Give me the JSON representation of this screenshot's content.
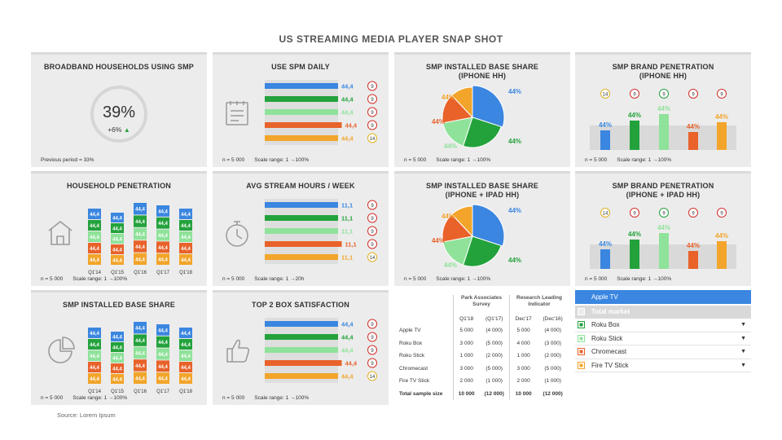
{
  "title": "US STREAMING MEDIA PLAYER SNAP SHOT",
  "source": "Source: Lorem Ipsum",
  "colors": {
    "apple": "#3a86e0",
    "roku": "#23a23c",
    "roku_stick": "#8fe29a",
    "chromecast": "#e8622a",
    "firetv": "#f2a52a",
    "total": "#d9d9d9"
  },
  "panels": {
    "broadband": {
      "title": "BROADBAND HOUSEHOLDS USING SMP",
      "value": "39%",
      "delta": "+6%",
      "previous": "Previous period = 33%"
    },
    "spm_daily": {
      "title": "USE SPM DAILY",
      "n": "n = 5 000",
      "scale": "Scale range: 1 →100%"
    },
    "installed_iphone": {
      "title": "SMP INSTALLED BASE SHARE\n(IPHONE HH)",
      "n": "n = 5 000",
      "scale": "Scale range: 1 →100%"
    },
    "brand_iphone": {
      "title": "SMP BRAND PENETRATION\n(IPHONE HH)",
      "n": "n = 5 000",
      "scale": "Scale range: 1 →100%"
    },
    "household": {
      "title": "HOUSEHOLD PENETRATION",
      "n": "n = 5 000",
      "scale": "Scale range: 1 →100%"
    },
    "stream_hours": {
      "title": "AVG STREAM HOURS / WEEK",
      "n": "n = 5 000",
      "scale": "Scale range: 1 →20h"
    },
    "installed_ipad": {
      "title": "SMP INSTALLED BASE SHARE\n(IPHONE + IPAD HH)",
      "n": "n = 5 000",
      "scale": "Scale range: 1 →100%"
    },
    "brand_ipad": {
      "title": "SMP BRAND PENETRATION\n(IPHONE + IPAD HH)",
      "n": "n = 5 000",
      "scale": "Scale range: 1 →100%"
    },
    "installed_share": {
      "title": "SMP INSTALLED BASE SHARE",
      "n": "n = 5 000",
      "scale": "Scale range: 1 →100%"
    },
    "top2box": {
      "title": "TOP 2 BOX SATISFACTION",
      "n": "n = 5 000",
      "scale": "Scale range: 1 →100%"
    }
  },
  "table": {
    "group1": "Park Associates Survey",
    "group2": "Research Leading Indicator",
    "sub": [
      "Q1'18",
      "(Q1'17)",
      "Dec'17",
      "(Dec'16)"
    ],
    "rows": [
      {
        "label": "Apple TV",
        "v": [
          "5 000",
          "(4 000)",
          "5 000",
          "(4 000)"
        ]
      },
      {
        "label": "Roku Box",
        "v": [
          "3 000",
          "(5 000)",
          "4 000",
          "(3 000)"
        ]
      },
      {
        "label": "Roku Stick",
        "v": [
          "1 000",
          "(2 000)",
          "1 000",
          "(2 000)"
        ]
      },
      {
        "label": "Chromecast",
        "v": [
          "3 000",
          "(5 000)",
          "3 000",
          "(5 000)"
        ]
      },
      {
        "label": "Fire TV Stick",
        "v": [
          "2 000",
          "(1 000)",
          "2 000",
          "(1 000)"
        ]
      },
      {
        "label": "Total sample size",
        "v": [
          "10 000",
          "(12 000)",
          "10 000",
          "(12 000)"
        ]
      }
    ]
  },
  "legend": [
    {
      "label": "Apple TV",
      "color": "#3a86e0",
      "style": "header"
    },
    {
      "label": "Total market",
      "color": "#d9d9d9",
      "style": "grey"
    },
    {
      "label": "Roku Box",
      "color": "#23a23c",
      "style": "item"
    },
    {
      "label": "Roku  Stick",
      "color": "#8fe29a",
      "style": "item"
    },
    {
      "label": "Chromecast",
      "color": "#e8622a",
      "style": "item"
    },
    {
      "label": "Fire TV Stick",
      "color": "#f2a52a",
      "style": "item"
    }
  ],
  "chart_data": [
    {
      "type": "bar",
      "chart": "USE SPM DAILY",
      "categories": [
        "Apple TV",
        "Roku Box",
        "Roku Stick",
        "Chromecast",
        "Fire TV Stick"
      ],
      "values": [
        44.4,
        44.4,
        44.4,
        44.4,
        44.4
      ],
      "labels": [
        "44,4",
        "44,4",
        "44,4",
        "44,4",
        "44,4"
      ],
      "ranks": [
        "9",
        "9",
        "9",
        "9",
        "14"
      ]
    },
    {
      "type": "bar",
      "chart": "AVG STREAM HOURS / WEEK",
      "categories": [
        "Apple TV",
        "Roku Box",
        "Roku Stick",
        "Chromecast",
        "Fire TV Stick"
      ],
      "values": [
        11.1,
        11.1,
        11.1,
        11.1,
        11.1
      ],
      "labels": [
        "11,1",
        "11,1",
        "11,1",
        "11,1",
        "11,1"
      ],
      "ranks": [
        "9",
        "9",
        "9",
        "9",
        "14"
      ]
    },
    {
      "type": "bar",
      "chart": "TOP 2 BOX SATISFACTION",
      "categories": [
        "Apple TV",
        "Roku Box",
        "Roku Stick",
        "Chromecast",
        "Fire TV Stick"
      ],
      "values": [
        44.4,
        44.4,
        44.4,
        44.4,
        44.4
      ],
      "labels": [
        "44,4",
        "44,4",
        "44,4",
        "44,4",
        "44,4"
      ],
      "ranks": [
        "9",
        "9",
        "9",
        "9",
        "14"
      ]
    },
    {
      "type": "pie",
      "chart": "SMP INSTALLED BASE SHARE (IPHONE HH)",
      "categories": [
        "Apple TV",
        "Roku Box",
        "Roku Stick",
        "Chromecast",
        "Fire TV Stick"
      ],
      "values": [
        44,
        44,
        44,
        44,
        44
      ],
      "labels": [
        "44%",
        "44%",
        "44%",
        "44%",
        "44%"
      ]
    },
    {
      "type": "pie",
      "chart": "SMP INSTALLED BASE SHARE (IPHONE + IPAD HH)",
      "categories": [
        "Apple TV",
        "Roku Box",
        "Roku Stick",
        "Chromecast",
        "Fire TV Stick"
      ],
      "values": [
        44,
        44,
        44,
        44,
        44
      ],
      "labels": [
        "44%",
        "44%",
        "44%",
        "44%",
        "44%"
      ]
    },
    {
      "type": "bar",
      "chart": "SMP BRAND PENETRATION (IPHONE HH)",
      "categories": [
        "Apple TV",
        "Roku Box",
        "Roku Stick",
        "Chromecast",
        "Fire TV Stick"
      ],
      "values": [
        44,
        44,
        44,
        44,
        44
      ],
      "labels": [
        "44%",
        "44%",
        "44%",
        "44%",
        "44%"
      ],
      "ranks": [
        "14",
        "9",
        "9",
        "9",
        "9"
      ]
    },
    {
      "type": "bar",
      "chart": "SMP BRAND PENETRATION (IPHONE + IPAD HH)",
      "categories": [
        "Apple TV",
        "Roku Box",
        "Roku Stick",
        "Chromecast",
        "Fire TV Stick"
      ],
      "values": [
        44,
        44,
        44,
        44,
        44
      ],
      "labels": [
        "44%",
        "44%",
        "44%",
        "44%",
        "44%"
      ],
      "ranks": [
        "14",
        "9",
        "9",
        "9",
        "9"
      ]
    },
    {
      "type": "bar",
      "chart": "HOUSEHOLD PENETRATION",
      "stacked": true,
      "categories": [
        "Q1'14",
        "Q1'15",
        "Q1'16",
        "Q1'17",
        "Q1'18"
      ],
      "series_order": [
        "Apple TV",
        "Roku Box",
        "Roku Stick",
        "Chromecast",
        "Fire TV Stick"
      ],
      "value_label": "44,4",
      "values": [
        [
          44.4,
          44.4,
          44.4,
          44.4,
          44.4
        ],
        [
          44.4,
          44.4,
          44.4,
          44.4,
          44.4
        ],
        [
          44.4,
          44.4,
          44.4,
          44.4,
          44.4
        ],
        [
          44.4,
          44.4,
          44.4,
          44.4,
          44.4
        ],
        [
          44.4,
          44.4,
          44.4,
          44.4,
          44.4
        ]
      ]
    },
    {
      "type": "bar",
      "chart": "SMP INSTALLED BASE SHARE",
      "stacked": true,
      "categories": [
        "Q1'14",
        "Q1'15",
        "Q1'16",
        "Q1'17",
        "Q1'18"
      ],
      "series_order": [
        "Apple TV",
        "Roku Box",
        "Roku Stick",
        "Chromecast",
        "Fire TV Stick"
      ],
      "value_label": "44,4",
      "values": [
        [
          44.4,
          44.4,
          44.4,
          44.4,
          44.4
        ],
        [
          44.4,
          44.4,
          44.4,
          44.4,
          44.4
        ],
        [
          44.4,
          44.4,
          44.4,
          44.4,
          44.4
        ],
        [
          44.4,
          44.4,
          44.4,
          44.4,
          44.4
        ],
        [
          44.4,
          44.4,
          44.4,
          44.4,
          44.4
        ]
      ]
    }
  ]
}
